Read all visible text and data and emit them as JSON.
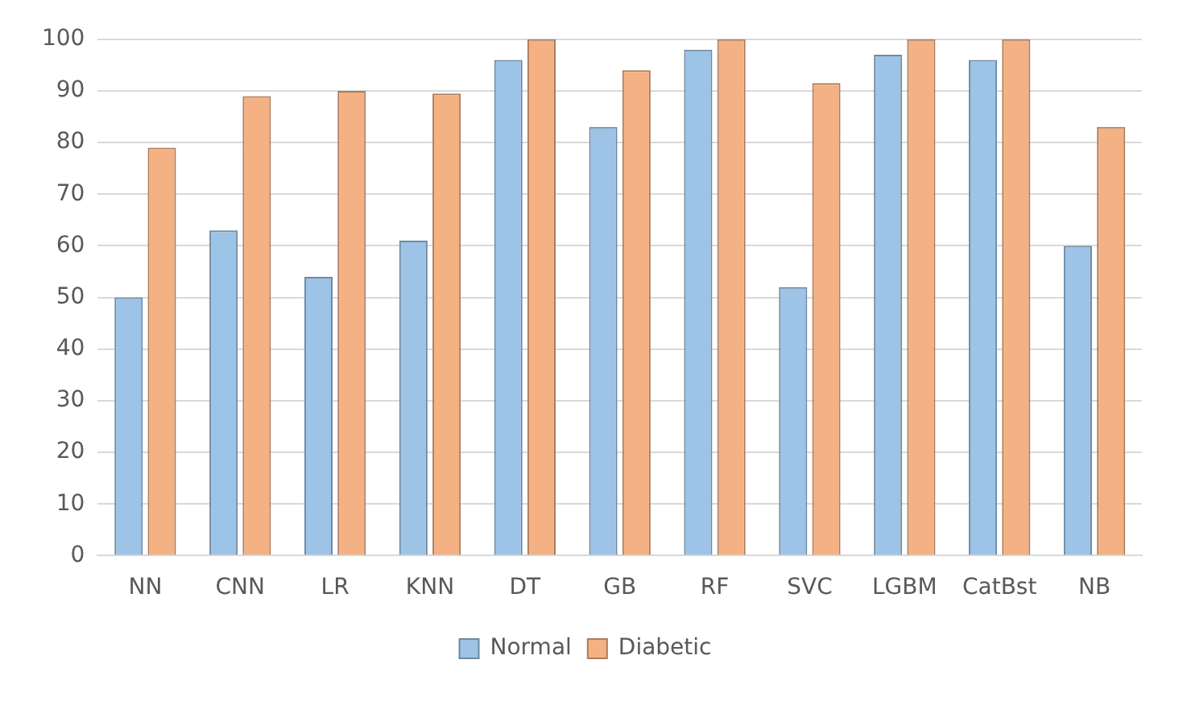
{
  "chart_data": {
    "type": "bar",
    "categories": [
      "NN",
      "CNN",
      "LR",
      "KNN",
      "DT",
      "GB",
      "RF",
      "SVC",
      "LGBM",
      "CatBst",
      "NB"
    ],
    "series": [
      {
        "name": "Normal",
        "color": "#9dc3e6",
        "values": [
          50,
          63,
          54,
          61,
          96,
          83,
          98,
          52,
          97,
          96,
          60
        ]
      },
      {
        "name": "Diabetic",
        "color": "#f4b183",
        "values": [
          79,
          89,
          90,
          89.5,
          100,
          94,
          100,
          91.5,
          100,
          100,
          83
        ]
      }
    ],
    "ylim": [
      0,
      100
    ],
    "yticks": [
      0,
      10,
      20,
      30,
      40,
      50,
      60,
      70,
      80,
      90,
      100
    ],
    "grid": "y",
    "legend": "bottom"
  }
}
